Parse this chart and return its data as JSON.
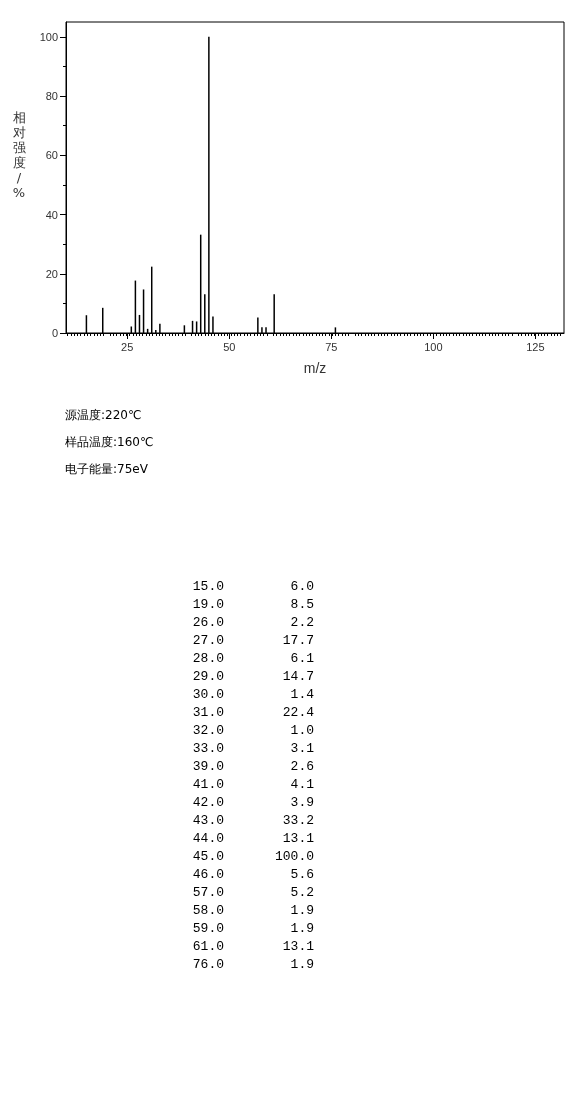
{
  "chart_data": {
    "type": "bar",
    "xlabel": "m/z",
    "ylabel": "相对强度/%",
    "x": [
      15,
      19,
      26,
      27,
      28,
      29,
      30,
      31,
      32,
      33,
      39,
      41,
      42,
      43,
      44,
      45,
      46,
      57,
      58,
      59,
      61,
      76
    ],
    "values": [
      6.0,
      8.5,
      2.2,
      17.7,
      6.1,
      14.7,
      1.4,
      22.4,
      1.0,
      3.1,
      2.6,
      4.1,
      3.9,
      33.2,
      13.1,
      100.0,
      5.6,
      5.2,
      1.9,
      1.9,
      13.1,
      1.9
    ],
    "color": "#000000",
    "xlim": [
      10,
      132
    ],
    "xticks": [
      25,
      50,
      75,
      100,
      125
    ],
    "ylim": [
      0,
      105
    ],
    "yticks": [
      0,
      20,
      40,
      60,
      80,
      100
    ],
    "grid": false,
    "annotations": [
      "源温度:220℃",
      "样品温度:160℃",
      "电子能量:75eV",
      "15.0",
      "6.0",
      "19.0",
      "8.5",
      "26.0",
      "2.2",
      "27.0",
      "17.7",
      "28.0",
      "6.1",
      "29.0",
      "14.7",
      "30.0",
      "1.4",
      "31.0",
      "22.4",
      "32.0",
      "1.0",
      "33.0",
      "3.1",
      "39.0",
      "2.6",
      "41.0",
      "4.1",
      "42.0",
      "3.9",
      "43.0",
      "33.2",
      "44.0",
      "13.1",
      "45.0",
      "100.0",
      "46.0",
      "5.6",
      "57.0",
      "5.2",
      "58.0",
      "1.9",
      "59.0",
      "1.9",
      "61.0",
      "13.1",
      "76.0",
      "1.9"
    ]
  }
}
